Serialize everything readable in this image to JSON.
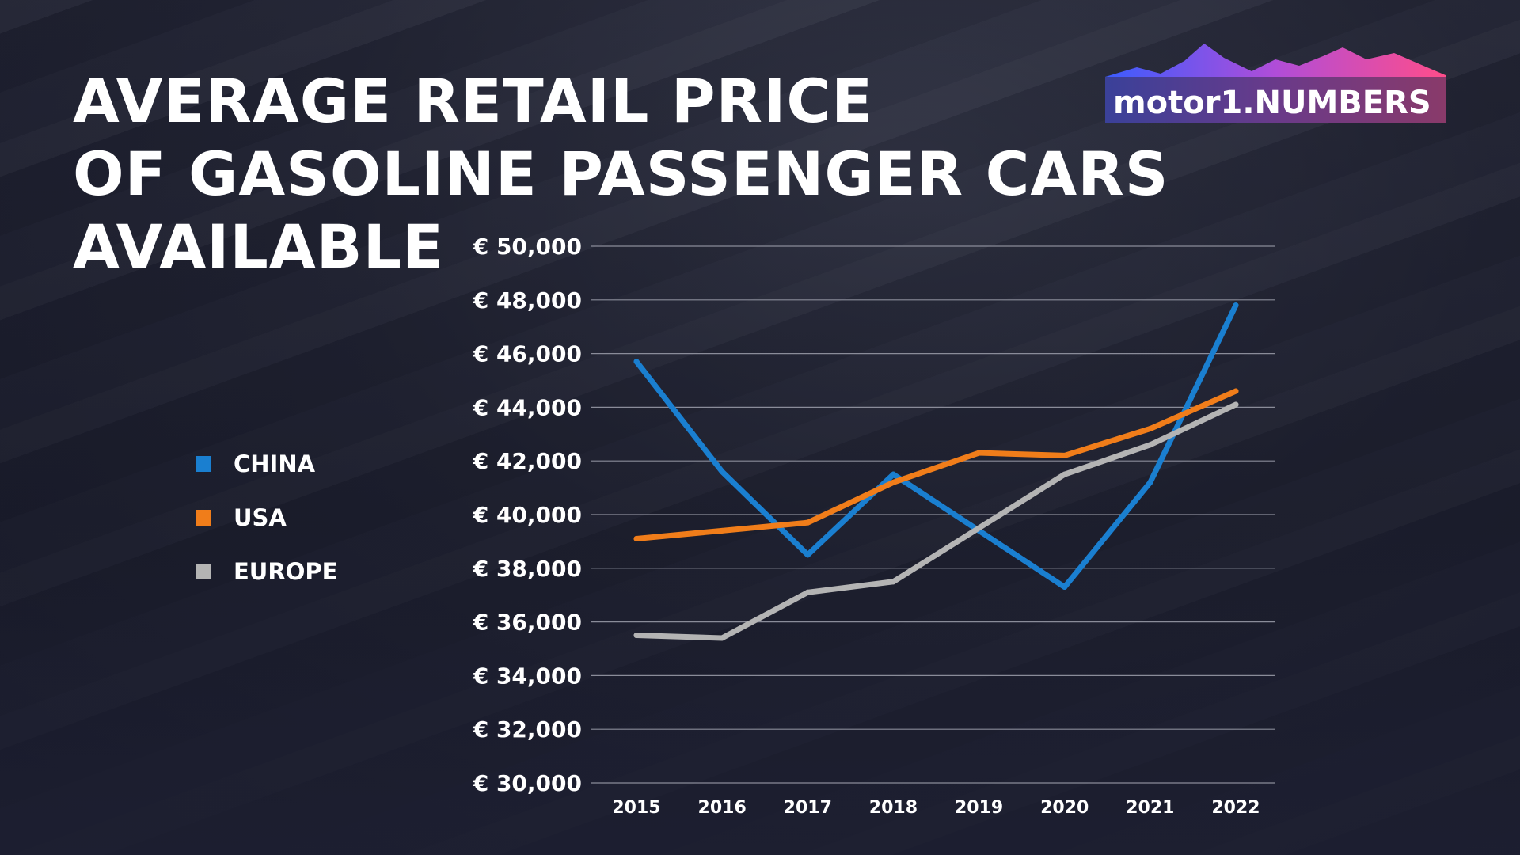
{
  "title_lines": [
    "AVERAGE RETAIL PRICE",
    "OF GASOLINE PASSENGER CARS AVAILABLE"
  ],
  "logo_text": "motor1.NUMBERS",
  "chart_data": {
    "type": "line",
    "title": "AVERAGE RETAIL PRICE OF GASOLINE PASSENGER CARS AVAILABLE",
    "x": [
      2015,
      2016,
      2017,
      2018,
      2019,
      2020,
      2021,
      2022
    ],
    "x_tick_labels": [
      "2015",
      "2016",
      "2017",
      "2018",
      "2019",
      "2020",
      "2021",
      "2022"
    ],
    "ylim": [
      30000,
      50000
    ],
    "y_tick_labels": [
      "€ 30,000",
      "€ 32,000",
      "€ 34,000",
      "€ 36,000",
      "€ 38,000",
      "€ 40,000",
      "€ 42,000",
      "€ 44,000",
      "€ 46,000",
      "€ 48,000",
      "€ 50,000"
    ],
    "y_ticks": [
      30000,
      32000,
      34000,
      36000,
      38000,
      40000,
      42000,
      44000,
      46000,
      48000,
      50000
    ],
    "grid": true,
    "legend_position": "left",
    "series": [
      {
        "name": "CHINA",
        "color": "#1a7fd0",
        "values": [
          45700,
          41600,
          38500,
          41500,
          39400,
          37300,
          41200,
          47800
        ]
      },
      {
        "name": "USA",
        "color": "#f07d1a",
        "values": [
          39100,
          39400,
          39700,
          41200,
          42300,
          42200,
          43200,
          44600
        ]
      },
      {
        "name": "EUROPE",
        "color": "#b4b4b4",
        "values": [
          35500,
          35400,
          37100,
          37500,
          39500,
          41500,
          42600,
          44100
        ]
      }
    ]
  }
}
